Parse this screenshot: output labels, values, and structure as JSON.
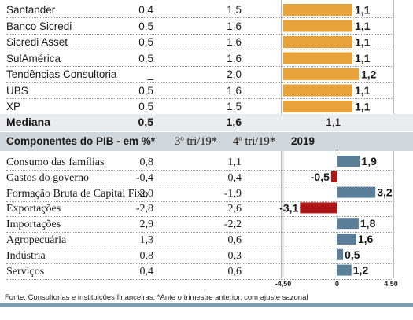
{
  "projections": {
    "rows": [
      {
        "name": "Santander",
        "v1": "0,4",
        "v2": "1,5",
        "v3": "1,1",
        "bar": 1.1
      },
      {
        "name": "Banco Sicredi",
        "v1": "0,5",
        "v2": "1,6",
        "v3": "1,1",
        "bar": 1.1
      },
      {
        "name": "Sicredi Asset",
        "v1": "0,5",
        "v2": "1,6",
        "v3": "1,1",
        "bar": 1.1
      },
      {
        "name": "SulAmérica",
        "v1": "0,5",
        "v2": "1,6",
        "v3": "1,1",
        "bar": 1.1
      },
      {
        "name": "Tendências Consultoria",
        "v1": "_",
        "v2": "2,0",
        "v3": "1,2",
        "bar": 1.2
      },
      {
        "name": "UBS",
        "v1": "0,5",
        "v2": "1,6",
        "v3": "1,1",
        "bar": 1.1
      },
      {
        "name": "XP",
        "v1": "0,5",
        "v2": "1,5",
        "v3": "1,1",
        "bar": 1.1
      }
    ],
    "median": {
      "name": "Mediana",
      "v1": "0,5",
      "v2": "1,6",
      "v3": "1,1"
    }
  },
  "components": {
    "header": {
      "title": "Componentes do PIB - em %*",
      "col1": "3º tri/19*",
      "col2": "4º tri/19*",
      "col3": "2019"
    },
    "rows": [
      {
        "name": "Consumo das famílias",
        "v1": "0,8",
        "v2": "1,1",
        "v3": "1,9",
        "bar": 1.9
      },
      {
        "name": "Gastos do governo",
        "v1": "-0,4",
        "v2": "0,4",
        "v3": "-0,5",
        "bar": -0.5
      },
      {
        "name": "Formação Bruta de Capital Fixo",
        "v1": "2,0",
        "v2": "-1,9",
        "v3": "3,2",
        "bar": 3.2
      },
      {
        "name": "Exportações",
        "v1": "-2,8",
        "v2": "2,6",
        "v3": "-3,1",
        "bar": -3.1
      },
      {
        "name": "Importações",
        "v1": "2,9",
        "v2": "-2,2",
        "v3": "1,8",
        "bar": 1.8
      },
      {
        "name": "Agropecuária",
        "v1": "1,3",
        "v2": "0,6",
        "v3": "1,6",
        "bar": 1.6
      },
      {
        "name": "Indústria",
        "v1": "0,8",
        "v2": "0,3",
        "v3": "0,5",
        "bar": 0.5
      },
      {
        "name": "Serviços",
        "v1": "0,4",
        "v2": "0,6",
        "v3": "1,2",
        "bar": 1.2
      }
    ]
  },
  "chart_data": [
    {
      "type": "bar",
      "orientation": "horizontal",
      "categories": [
        "Santander",
        "Banco Sicredi",
        "Sicredi Asset",
        "SulAmérica",
        "Tendências Consultoria",
        "UBS",
        "XP"
      ],
      "values": [
        1.1,
        1.1,
        1.1,
        1.1,
        1.2,
        1.1,
        1.1
      ],
      "color": "#e8a23a"
    },
    {
      "type": "bar",
      "orientation": "horizontal",
      "categories": [
        "Consumo das famílias",
        "Gastos do governo",
        "Formação Bruta de Capital Fixo",
        "Exportações",
        "Importações",
        "Agropecuária",
        "Indústria",
        "Serviços"
      ],
      "values": [
        1.9,
        -0.5,
        3.2,
        -3.1,
        1.8,
        1.6,
        0.5,
        1.2
      ],
      "xlim": [
        -4.5,
        4.5
      ],
      "ticks": [
        "-4,50",
        "0",
        "4,50"
      ],
      "colors": {
        "positive": "#5a7f98",
        "negative": "#b01515"
      }
    }
  ],
  "footer": "Fonte: Consultorias e instituições financeiras. *Ante o trimestre anterior, com ajuste sazonal"
}
